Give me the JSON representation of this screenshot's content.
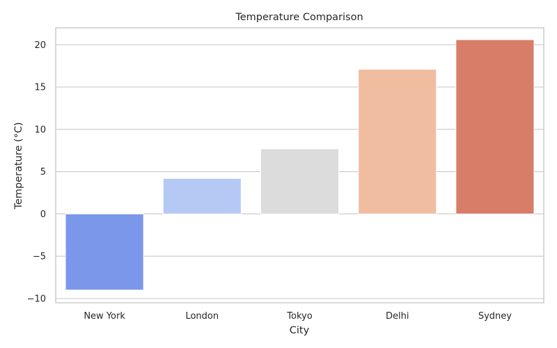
{
  "chart_data": {
    "type": "bar",
    "title": "Temperature Comparison",
    "xlabel": "City",
    "ylabel": "Temperature (°C)",
    "categories": [
      "New York",
      "London",
      "Tokyo",
      "Delhi",
      "Sydney"
    ],
    "values": [
      -9.0,
      4.2,
      7.7,
      17.1,
      20.6
    ],
    "colors": [
      "#7b97ea",
      "#b5c9f5",
      "#dcdcdc",
      "#f1bda1",
      "#d77d68"
    ],
    "ylim": [
      -10.5,
      22
    ],
    "yticks": [
      -10,
      -5,
      0,
      5,
      10,
      15,
      20
    ],
    "ytick_labels": [
      "−10",
      "−5",
      "0",
      "5",
      "10",
      "15",
      "20"
    ],
    "grid": true,
    "grid_color": "#cccccc"
  }
}
